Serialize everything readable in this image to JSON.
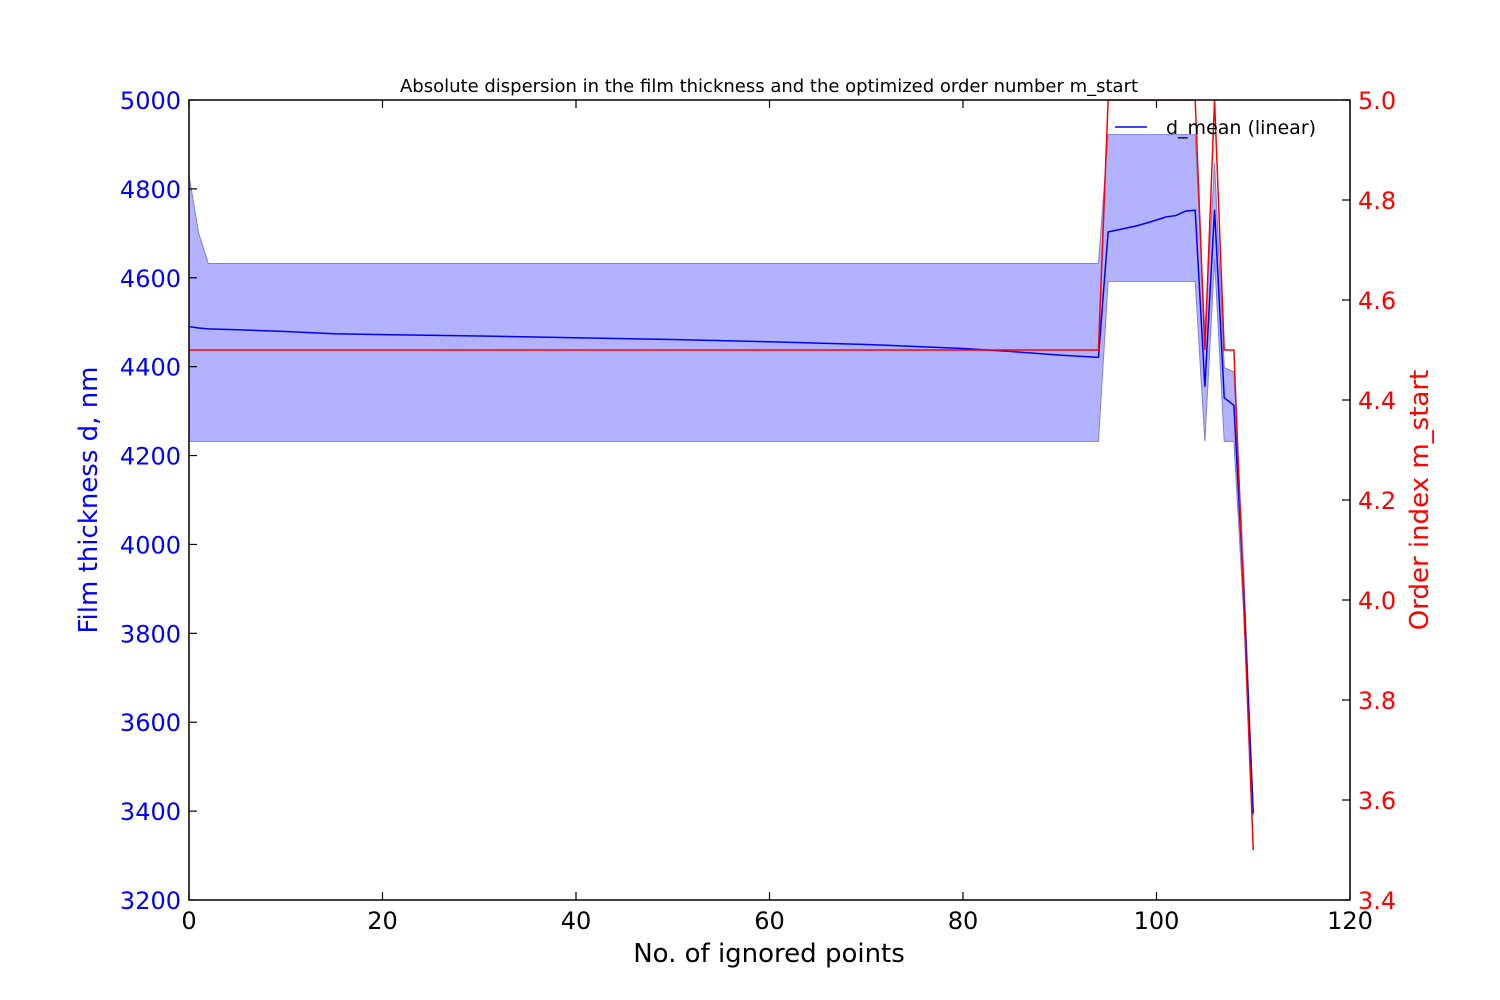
{
  "chart_data": {
    "type": "line",
    "title": "Absolute dispersion in the film thickness and the optimized order number m_start",
    "xlabel": "No. of ignored points",
    "ylabel": "Film thickness d, nm",
    "y2label": "Order index m_start",
    "xlim": [
      0,
      120
    ],
    "ylim": [
      3200,
      5000
    ],
    "y2lim": [
      3.4,
      5.0
    ],
    "xticks": [
      "0",
      "20",
      "40",
      "60",
      "80",
      "100",
      "120"
    ],
    "yticks": [
      "3200",
      "3400",
      "3600",
      "3800",
      "4000",
      "4200",
      "4400",
      "4600",
      "4800",
      "5000"
    ],
    "y2ticks": [
      "3.4",
      "3.6",
      "3.8",
      "4.0",
      "4.2",
      "4.4",
      "4.6",
      "4.8",
      "5.0"
    ],
    "legend": {
      "entries": [
        "d_mean (linear)"
      ],
      "placement": "top-right"
    },
    "colors": {
      "d_mean": "#0000ff",
      "band_fill": "#b2b2ff",
      "band_edge": "#8080cc",
      "m_start": "#ff0000",
      "left_axis": "#0000ff",
      "right_axis": "#ff0000",
      "x_axis": "#000000"
    },
    "series": [
      {
        "name": "d_mean (linear)",
        "axis": "left",
        "x": [
          0,
          1,
          2,
          5,
          10,
          15,
          20,
          30,
          40,
          50,
          60,
          70,
          80,
          85,
          90,
          94,
          95,
          98,
          100,
          101,
          102,
          103,
          104,
          105,
          106,
          107,
          108,
          109,
          110
        ],
        "values": [
          4490,
          4487,
          4485,
          4483,
          4479,
          4474,
          4472,
          4469,
          4465,
          4461,
          4456,
          4450,
          4441,
          4434,
          4426,
          4421,
          4703,
          4717,
          4730,
          4737,
          4740,
          4750,
          4752,
          4355,
          4753,
          4330,
          4313,
          3900,
          3395
        ]
      },
      {
        "axis": "left",
        "x": [
          0,
          1,
          2,
          94,
          95,
          104,
          105,
          106,
          107,
          108,
          109,
          110
        ],
        "upper": [
          4830,
          4700,
          4632,
          4632,
          4922,
          4922,
          4478,
          4858,
          4398,
          4388,
          3950,
          3400
        ],
        "lower": [
          4232,
          4232,
          4232,
          4232,
          4592,
          4592,
          4232,
          4642,
          4232,
          4232,
          3850,
          3390
        ]
      },
      {
        "axis": "right",
        "x": [
          0,
          94,
          95,
          96,
          104,
          105,
          106,
          107,
          108,
          109,
          110
        ],
        "values": [
          4.5,
          4.5,
          5.0,
          5.0,
          5.0,
          4.5,
          5.0,
          4.5,
          4.5,
          4.0,
          3.5
        ]
      }
    ]
  }
}
